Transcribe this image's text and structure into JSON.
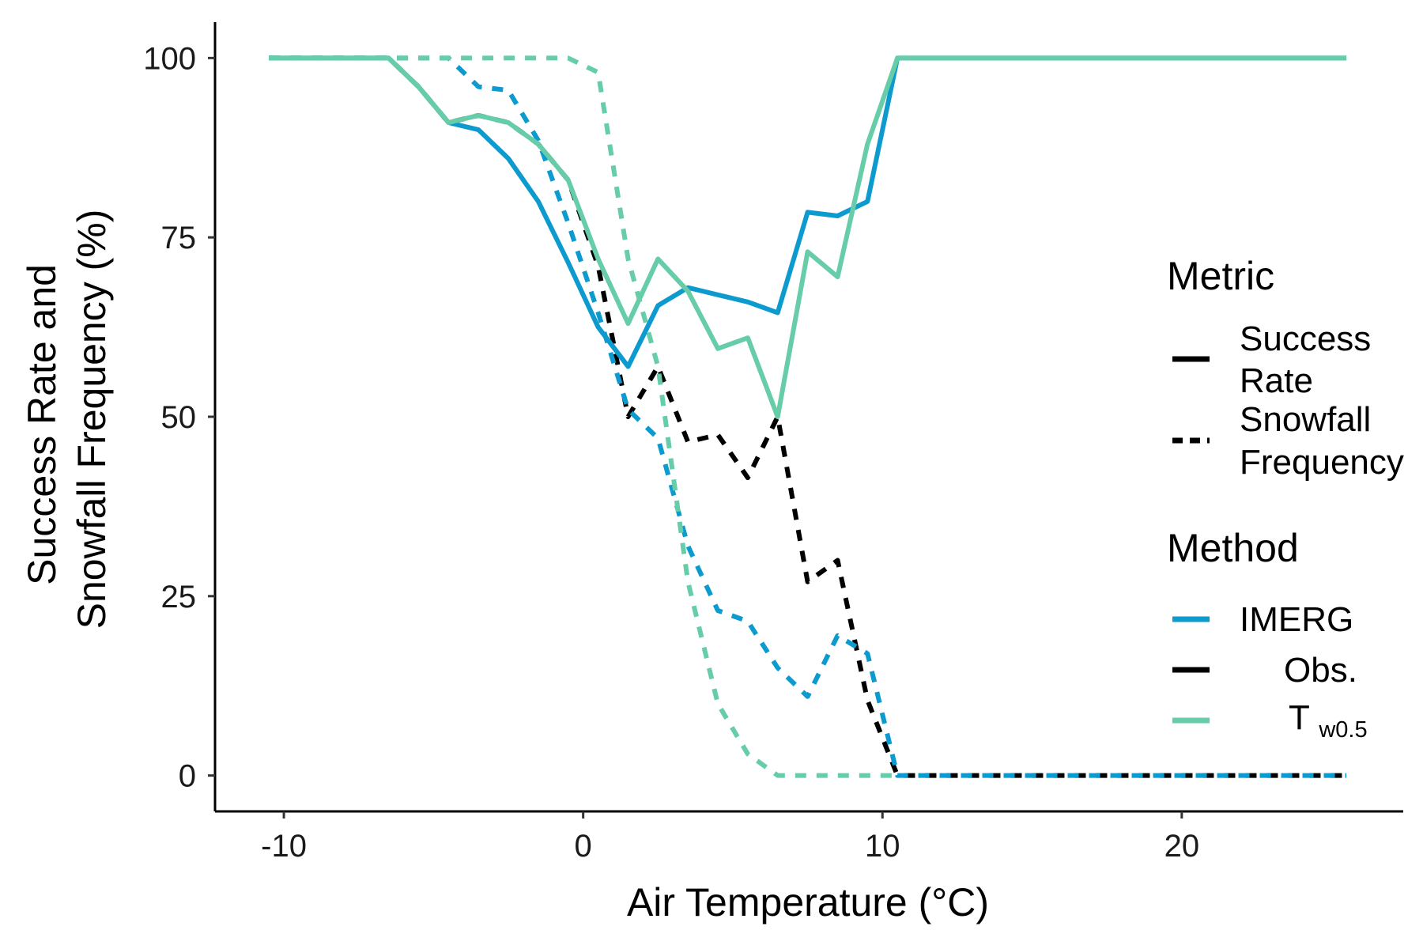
{
  "chart_data": {
    "type": "line",
    "xlabel": "Air Temperature (°C)",
    "ylabel": [
      "Success Rate and",
      "Snowfall Frequency (%)"
    ],
    "xlim": [
      -12.3,
      27.4
    ],
    "ylim": [
      -5,
      105
    ],
    "xticks": [
      -10,
      0,
      10,
      20
    ],
    "xtick_labels": [
      "-10",
      "0",
      "10",
      "20"
    ],
    "yticks": [
      0,
      25,
      50,
      75,
      100
    ],
    "ytick_labels": [
      "0",
      "25",
      "50",
      "75",
      "100"
    ],
    "grid": false,
    "legend": {
      "placement": "right",
      "metric_title": "Metric",
      "metric_items": [
        {
          "key": "success",
          "lines": [
            "Success",
            "Rate"
          ],
          "dash": "solid"
        },
        {
          "key": "snowfall",
          "lines": [
            "Snowfall",
            "Frequency"
          ],
          "dash": "dashed"
        }
      ],
      "method_title": "Method",
      "method_items": [
        {
          "key": "imerg",
          "label": "IMERG",
          "sub": "",
          "color": "#0C9ACF"
        },
        {
          "key": "obs",
          "label": "Obs.",
          "sub": "",
          "color": "#000000"
        },
        {
          "key": "tw",
          "label": "T",
          "sub": "w0.5",
          "color": "#66CDA8"
        }
      ]
    },
    "series": [
      {
        "method": "Obs.",
        "metric": "Snowfall Frequency",
        "color": "#000000",
        "dash": "dashed",
        "x": [
          -10.5,
          -9.5,
          -8.5,
          -7.5,
          -6.5,
          -5.5,
          -4.5,
          -3.5,
          -2.5,
          -1.5,
          -0.5,
          0.5,
          1.5,
          2.5,
          3.5,
          4.5,
          5.5,
          6.5,
          7.5,
          8.5,
          9.5,
          10.5,
          11.5,
          12.5,
          13.5,
          14.5,
          15.5,
          16.5,
          17.5,
          18.5,
          19.5,
          20.5,
          21.5,
          22.5,
          23.5,
          24.5,
          25.5
        ],
        "y": [
          100,
          100,
          100,
          100,
          100,
          96,
          91,
          92,
          91,
          88,
          83,
          71,
          50,
          57,
          46.5,
          47.5,
          41.5,
          50,
          27,
          30,
          10.5,
          0,
          0,
          0,
          0,
          0,
          0,
          0,
          0,
          0,
          0,
          0,
          0,
          0,
          0,
          0,
          0
        ]
      },
      {
        "method": "IMERG",
        "metric": "Snowfall Frequency",
        "color": "#0C9ACF",
        "dash": "dashed",
        "x": [
          -10.5,
          -9.5,
          -8.5,
          -7.5,
          -6.5,
          -5.5,
          -4.5,
          -3.5,
          -2.5,
          -1.5,
          -0.5,
          0.5,
          1.5,
          2.5,
          3.5,
          4.5,
          5.5,
          6.5,
          7.5,
          8.5,
          9.5,
          10.5,
          11.5,
          12.5,
          13.5,
          14.5,
          15.5,
          16.5,
          17.5,
          18.5,
          19.5,
          20.5,
          21.5,
          22.5,
          23.5,
          24.5,
          25.5
        ],
        "y": [
          100,
          100,
          100,
          100,
          100,
          100,
          100,
          96,
          95.5,
          88.5,
          77,
          64.5,
          51,
          47,
          32,
          23,
          21.5,
          15,
          11,
          19.5,
          17,
          0,
          0,
          0,
          0,
          0,
          0,
          0,
          0,
          0,
          0,
          0,
          0,
          0,
          0,
          0,
          0
        ]
      },
      {
        "method": "Tw0.5",
        "metric": "Snowfall Frequency",
        "color": "#66CDA8",
        "dash": "dashed",
        "x": [
          -10.5,
          -9.5,
          -8.5,
          -7.5,
          -6.5,
          -5.5,
          -4.5,
          -3.5,
          -2.5,
          -1.5,
          -0.5,
          0.5,
          1.5,
          2.5,
          3.5,
          4.5,
          5.5,
          6.5,
          7.5,
          8.5,
          9.5,
          10.5
        ],
        "y": [
          100,
          100,
          100,
          100,
          100,
          100,
          100,
          100,
          100,
          100,
          100,
          98,
          72,
          57,
          27,
          10,
          3,
          0,
          0,
          0,
          0,
          0
        ]
      },
      {
        "method": "IMERG",
        "metric": "Success Rate",
        "color": "#0C9ACF",
        "dash": "solid",
        "x": [
          -10.5,
          -9.5,
          -8.5,
          -7.5,
          -6.5,
          -5.5,
          -4.5,
          -3.5,
          -2.5,
          -1.5,
          -0.5,
          0.5,
          1.5,
          2.5,
          3.5,
          4.5,
          5.5,
          6.5,
          7.5,
          8.5,
          9.5,
          10.5,
          11.5,
          12.5,
          13.5,
          14.5,
          15.5,
          16.5,
          17.5,
          18.5,
          19.5,
          20.5,
          21.5,
          22.5,
          23.5,
          24.5,
          25.5
        ],
        "y": [
          100,
          100,
          100,
          100,
          100,
          96,
          91,
          90,
          86,
          80,
          71.5,
          62.5,
          57,
          65.5,
          68,
          67,
          66,
          64.5,
          78.5,
          78,
          80,
          100,
          100,
          100,
          100,
          100,
          100,
          100,
          100,
          100,
          100,
          100,
          100,
          100,
          100,
          100,
          100
        ]
      },
      {
        "method": "Tw0.5",
        "metric": "Success Rate",
        "color": "#66CDA8",
        "dash": "solid",
        "x": [
          -10.5,
          -9.5,
          -8.5,
          -7.5,
          -6.5,
          -5.5,
          -4.5,
          -3.5,
          -2.5,
          -1.5,
          -0.5,
          0.5,
          1.5,
          2.5,
          3.5,
          4.5,
          5.5,
          6.5,
          7.5,
          8.5,
          9.5,
          10.5,
          11.5,
          12.5,
          13.5,
          14.5,
          15.5,
          16.5,
          17.5,
          18.5,
          19.5,
          20.5,
          21.5,
          22.5,
          23.5,
          24.5,
          25.5
        ],
        "y": [
          100,
          100,
          100,
          100,
          100,
          96,
          91,
          92,
          91,
          88,
          83,
          72,
          63,
          72,
          67.5,
          59.5,
          61,
          50,
          73,
          69.5,
          88,
          100,
          100,
          100,
          100,
          100,
          100,
          100,
          100,
          100,
          100,
          100,
          100,
          100,
          100,
          100,
          100
        ]
      }
    ]
  }
}
